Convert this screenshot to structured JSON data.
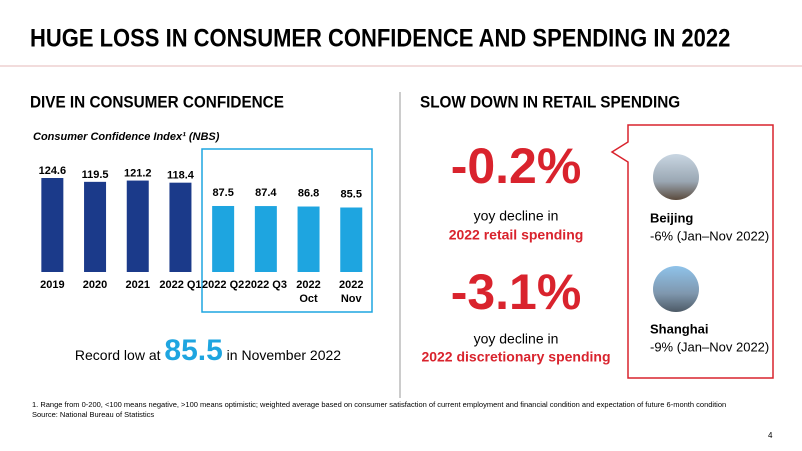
{
  "slide": {
    "title": "HUGE LOSS IN CONSUMER CONFIDENCE AND SPENDING IN 2022",
    "left_heading": "DIVE IN CONSUMER CONFIDENCE",
    "right_heading": "SLOW DOWN IN RETAIL SPENDING",
    "record_low": {
      "prefix": "Record low at",
      "value": "85.5",
      "suffix": "in November 2022"
    },
    "stats": [
      {
        "value": "-0.2%",
        "line1": "yoy decline in",
        "line2": "2022 retail spending"
      },
      {
        "value": "-3.1%",
        "line1": "yoy decline in",
        "line2": "2022 discretionary spending"
      }
    ],
    "cities": [
      {
        "name": "Beijing",
        "detail": "-6% (Jan–Nov 2022)"
      },
      {
        "name": "Shanghai",
        "detail": "-9% (Jan–Nov 2022)"
      }
    ],
    "footnotes": [
      "1. Range from 0-200, <100 means negative, >100 means optimistic; weighted average based on consumer satisfaction of current employment and financial condition and expectation of future 6-month condition",
      "Source: National Bureau of Statistics"
    ],
    "page_number": "4"
  },
  "chart_data": {
    "type": "bar",
    "title": "Consumer Confidence Index¹ (NBS)",
    "categories": [
      "2019",
      "2020",
      "2021",
      "2022 Q1",
      "2022 Q2",
      "2022 Q3",
      "2022\nOct",
      "2022\nNov"
    ],
    "values": [
      124.6,
      119.5,
      121.2,
      118.4,
      87.5,
      87.4,
      86.8,
      85.5
    ],
    "colors": [
      "#1b3a8a",
      "#1b3a8a",
      "#1b3a8a",
      "#1b3a8a",
      "#1ea5e0",
      "#1ea5e0",
      "#1ea5e0",
      "#1ea5e0"
    ]
  }
}
